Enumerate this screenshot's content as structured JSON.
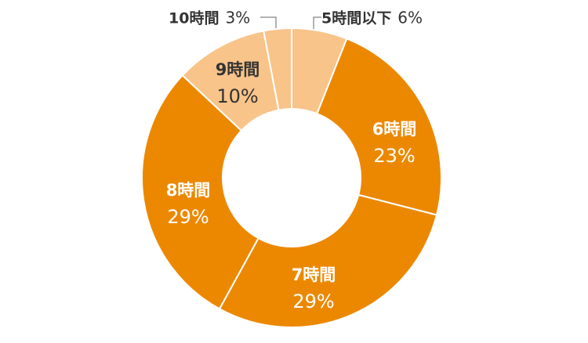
{
  "chart_data": {
    "type": "donut",
    "categories": [
      "5時間以下",
      "6時間",
      "7時間",
      "8時間",
      "9時間",
      "10時間"
    ],
    "values": [
      6,
      23,
      29,
      29,
      10,
      3
    ],
    "value_labels": [
      "6%",
      "23%",
      "29%",
      "29%",
      "10%",
      "3%"
    ],
    "colors": [
      "#f8c48a",
      "#ec8800",
      "#ec8800",
      "#ec8800",
      "#f8c48a",
      "#f8c48a"
    ]
  }
}
